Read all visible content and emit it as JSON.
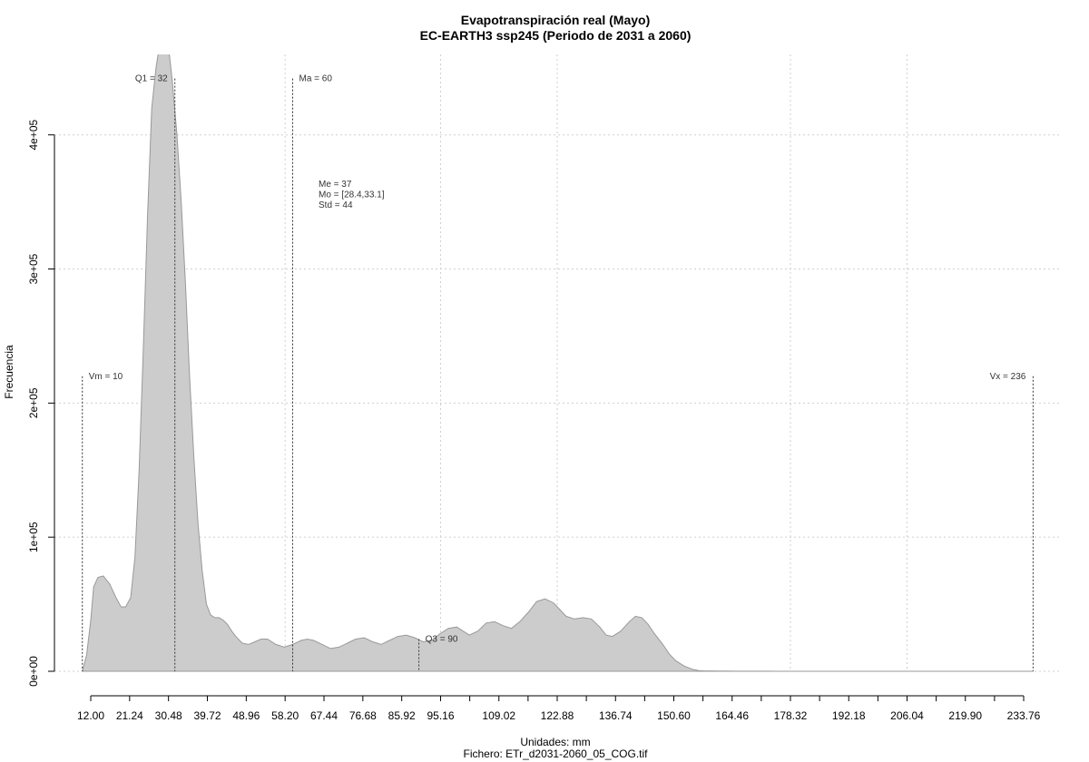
{
  "chart_data": {
    "type": "area",
    "title": "Evapotranspiración real (Mayo)",
    "subtitle": "EC-EARTH3 ssp245 (Periodo de 2031 a 2060)",
    "xlabel": "Unidades: mm",
    "ylabel": "Frecuencia",
    "footer": "Fichero: ETr_d2031-2060_05_COG.tif",
    "xlim": [
      10,
      236
    ],
    "ylim": [
      0,
      460000
    ],
    "x_ticks": [
      12.0,
      21.24,
      30.48,
      39.72,
      48.96,
      58.2,
      67.44,
      76.68,
      85.92,
      95.16,
      109.02,
      122.88,
      136.74,
      150.6,
      164.46,
      178.32,
      192.18,
      206.04,
      219.9,
      233.76
    ],
    "x_tick_labels": [
      "12.00",
      "21.24",
      "30.48",
      "39.72",
      "48.96",
      "58.20",
      "67.44",
      "76.68",
      "85.92",
      "95.16",
      "109.02",
      "122.88",
      "136.74",
      "150.60",
      "164.46",
      "178.32",
      "192.18",
      "206.04",
      "219.90",
      "233.76"
    ],
    "y_ticks": [
      0,
      100000,
      200000,
      300000,
      400000
    ],
    "y_tick_labels": [
      "0e+00",
      "1e+05",
      "2e+05",
      "3e+05",
      "4e+05"
    ],
    "grid": true,
    "fill_color": "#cccccc",
    "stroke_color": "#999999",
    "series": [
      {
        "x": [
          10,
          11,
          12,
          12.7,
          13.7,
          15,
          16.5,
          18,
          19.2,
          20.3,
          21.5,
          22.5,
          23.5,
          24.5,
          25.5,
          26.5,
          27.5,
          28.5,
          29.5,
          30.5,
          31.4,
          32.5,
          33.5,
          34.5,
          35.5,
          36.5,
          37.5,
          38.5,
          39.5,
          40.5,
          41.5,
          42.5,
          43.5,
          44.5,
          45.5,
          46.5,
          48,
          49.5,
          51,
          52.5,
          54,
          56,
          58,
          60,
          62,
          63.5,
          65,
          67,
          69,
          71,
          73,
          75,
          77,
          79,
          81,
          83,
          85,
          87,
          89,
          91,
          93,
          95,
          97,
          99,
          100.5,
          102,
          104,
          106,
          108,
          110,
          112,
          114,
          116,
          118,
          120,
          122,
          123.5,
          125,
          127,
          129,
          131,
          133,
          134.5,
          136,
          138,
          140,
          141.5,
          143,
          144.5,
          146,
          148,
          149.5,
          151,
          153,
          155,
          156.5,
          158,
          160,
          161.5,
          163,
          165,
          167,
          169,
          171,
          173,
          175,
          178,
          182,
          190,
          200,
          210,
          220,
          230,
          236
        ],
        "y": [
          0,
          12000,
          38000,
          63000,
          70000,
          71000,
          65000,
          55000,
          48000,
          48000,
          55000,
          85000,
          150000,
          240000,
          340000,
          420000,
          450000,
          470000,
          475000,
          465000,
          440000,
          400000,
          350000,
          290000,
          220000,
          160000,
          110000,
          75000,
          50000,
          42000,
          40000,
          40000,
          38000,
          35000,
          30000,
          26000,
          21000,
          20000,
          22000,
          24000,
          24000,
          20000,
          18000,
          20000,
          23000,
          24000,
          23000,
          20000,
          17000,
          18000,
          21000,
          24000,
          25000,
          22000,
          20000,
          23000,
          26000,
          27000,
          25000,
          22000,
          23000,
          28000,
          32000,
          33000,
          30000,
          27000,
          30000,
          36000,
          37000,
          34000,
          32000,
          37000,
          44000,
          52000,
          54000,
          51000,
          46000,
          41000,
          39000,
          40000,
          39000,
          33000,
          27000,
          26000,
          30000,
          37000,
          41000,
          40000,
          35000,
          28000,
          20000,
          13000,
          8000,
          4000,
          1500,
          500,
          300,
          250,
          200,
          150,
          100,
          80,
          60,
          50,
          40,
          30,
          20,
          10,
          5,
          0,
          0,
          0,
          0,
          0
        ]
      }
    ],
    "markers": [
      {
        "label": "Vm = 10",
        "x": 10,
        "top_y": 220000,
        "anchor": "start"
      },
      {
        "label": "Q1 = 32",
        "x": 32,
        "top_y": 442000,
        "anchor": "end"
      },
      {
        "label": "Ma = 60",
        "x": 60,
        "top_y": 442000,
        "anchor": "start"
      },
      {
        "label": "Q3 = 90",
        "x": 90,
        "top_y": 24000,
        "anchor": "start"
      },
      {
        "label": "Vx = 236",
        "x": 236,
        "top_y": 220000,
        "anchor": "end"
      }
    ],
    "stats_text": [
      "Me = 37",
      "Mo = [28.4,33.1]",
      "Std = 44"
    ]
  }
}
